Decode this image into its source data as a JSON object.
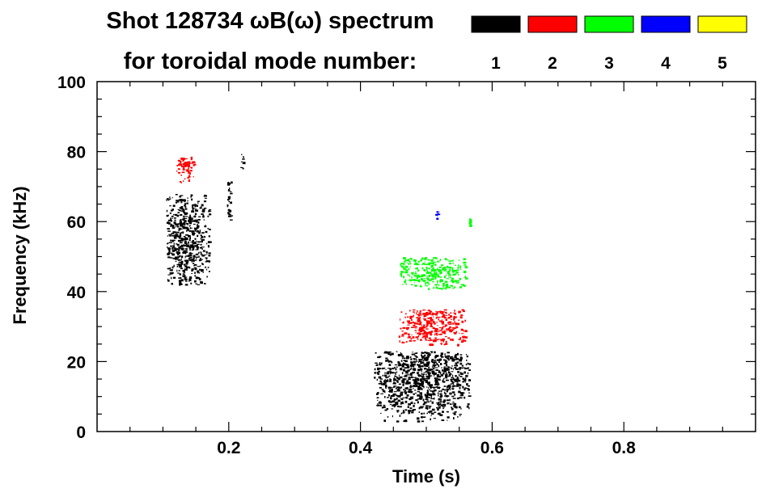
{
  "chart_data": {
    "type": "scatter",
    "title": "Shot 128734 ωB(ω) spectrum",
    "subtitle": "for toroidal mode number:",
    "xlabel": "Time (s)",
    "ylabel": "Frequency (kHz)",
    "xlim": [
      0.0,
      1.0
    ],
    "ylim": [
      0,
      100
    ],
    "x_ticks": [
      0.2,
      0.4,
      0.6,
      0.8
    ],
    "x_tick_labels": [
      "0.2",
      "0.4",
      "0.6",
      "0.8"
    ],
    "y_ticks": [
      0,
      20,
      40,
      60,
      80,
      100
    ],
    "y_tick_labels": [
      "0",
      "20",
      "40",
      "60",
      "80",
      "100"
    ],
    "grid": false,
    "legend_placement": "top-right",
    "legend": [
      {
        "label": "1",
        "color": "#000000"
      },
      {
        "label": "2",
        "color": "#ff0000"
      },
      {
        "label": "3",
        "color": "#00ff00"
      },
      {
        "label": "4",
        "color": "#0000ff"
      },
      {
        "label": "5",
        "color": "#ffff00"
      }
    ],
    "series": [
      {
        "mode": 1,
        "color": "#000000",
        "regions": [
          {
            "t": [
              0.105,
              0.17
            ],
            "f": [
              42,
              68
            ],
            "center": [
              0.135,
              55
            ]
          },
          {
            "t": [
              0.197,
              0.203
            ],
            "f": [
              58,
              72
            ],
            "center": [
              0.2,
              68
            ]
          },
          {
            "t": [
              0.216,
              0.222
            ],
            "f": [
              75,
              80
            ],
            "center": [
              0.22,
              78
            ]
          },
          {
            "t": [
              0.42,
              0.565
            ],
            "f": [
              3,
              23
            ],
            "center": [
              0.49,
              16
            ]
          }
        ]
      },
      {
        "mode": 2,
        "color": "#ff0000",
        "regions": [
          {
            "t": [
              0.12,
              0.147
            ],
            "f": [
              71,
              79
            ],
            "center": [
              0.135,
              76
            ]
          },
          {
            "t": [
              0.458,
              0.56
            ],
            "f": [
              25,
              35
            ],
            "center": [
              0.51,
              31
            ]
          }
        ]
      },
      {
        "mode": 3,
        "color": "#00ff00",
        "regions": [
          {
            "t": [
              0.46,
              0.56
            ],
            "f": [
              41,
              50
            ],
            "center": [
              0.51,
              46
            ]
          },
          {
            "t": [
              0.564,
              0.568
            ],
            "f": [
              59,
              61
            ],
            "center": [
              0.566,
              60
            ]
          }
        ]
      },
      {
        "mode": 4,
        "color": "#0000ff",
        "regions": [
          {
            "t": [
              0.513,
              0.518
            ],
            "f": [
              61,
              64
            ],
            "center": [
              0.515,
              62
            ]
          }
        ]
      },
      {
        "mode": 5,
        "color": "#ffff00",
        "regions": []
      }
    ]
  }
}
